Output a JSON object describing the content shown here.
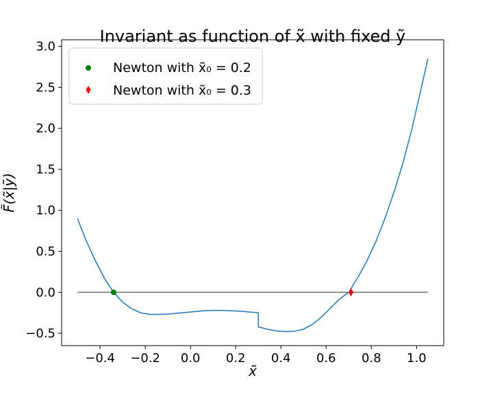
{
  "chart_data": {
    "type": "line",
    "title": "Invariant as function of x̃ with fixed ỹ",
    "xlabel": "x̃",
    "ylabel": "F̃(x̃|ỹ)",
    "xlim": [
      -0.57,
      1.12
    ],
    "ylim": [
      -0.65,
      3.08
    ],
    "xticks": [
      -0.4,
      -0.2,
      0.0,
      0.2,
      0.4,
      0.6,
      0.8,
      1.0
    ],
    "xtick_labels": [
      "−0.4",
      "−0.2",
      "0.0",
      "0.2",
      "0.4",
      "0.6",
      "0.8",
      "1.0"
    ],
    "yticks": [
      -0.5,
      0.0,
      0.5,
      1.0,
      1.5,
      2.0,
      2.5,
      3.0
    ],
    "ytick_labels": [
      "−0.5",
      "0.0",
      "0.5",
      "1.0",
      "1.5",
      "2.0",
      "2.5",
      "3.0"
    ],
    "grid": false,
    "legend_position": "top-left",
    "series": [
      {
        "color": "#1f77b4",
        "kind": "line",
        "x": [
          -0.5,
          -0.46,
          -0.42,
          -0.38,
          -0.34,
          -0.3,
          -0.26,
          -0.22,
          -0.18,
          -0.14,
          -0.1,
          -0.06,
          -0.02,
          0.02,
          0.06,
          0.1,
          0.14,
          0.18,
          0.22,
          0.26,
          0.3,
          0.3,
          0.34,
          0.38,
          0.42,
          0.46,
          0.5,
          0.54,
          0.58,
          0.62,
          0.66,
          0.7,
          0.74,
          0.78,
          0.82,
          0.86,
          0.9,
          0.94,
          0.98,
          1.02,
          1.05
        ],
        "y": [
          0.9,
          0.62,
          0.38,
          0.17,
          0.0,
          -0.12,
          -0.2,
          -0.25,
          -0.27,
          -0.27,
          -0.265,
          -0.255,
          -0.245,
          -0.235,
          -0.225,
          -0.22,
          -0.22,
          -0.225,
          -0.23,
          -0.24,
          -0.25,
          -0.42,
          -0.45,
          -0.47,
          -0.48,
          -0.475,
          -0.45,
          -0.39,
          -0.3,
          -0.19,
          -0.08,
          0.0,
          0.18,
          0.38,
          0.62,
          0.9,
          1.22,
          1.58,
          2.0,
          2.48,
          2.85
        ]
      },
      {
        "color": "#808080",
        "kind": "line",
        "x": [
          -0.5,
          1.05
        ],
        "y": [
          0.0,
          0.0
        ]
      },
      {
        "name": "Newton with x̃₀ = 0.2",
        "color": "#008000",
        "kind": "marker",
        "marker": "circle",
        "x": [
          -0.34
        ],
        "y": [
          0.0
        ]
      },
      {
        "name": "Newton with x̃₀ = 0.3",
        "color": "#ff0000",
        "kind": "marker",
        "marker": "diamond",
        "x": [
          0.71
        ],
        "y": [
          0.0
        ]
      }
    ]
  }
}
